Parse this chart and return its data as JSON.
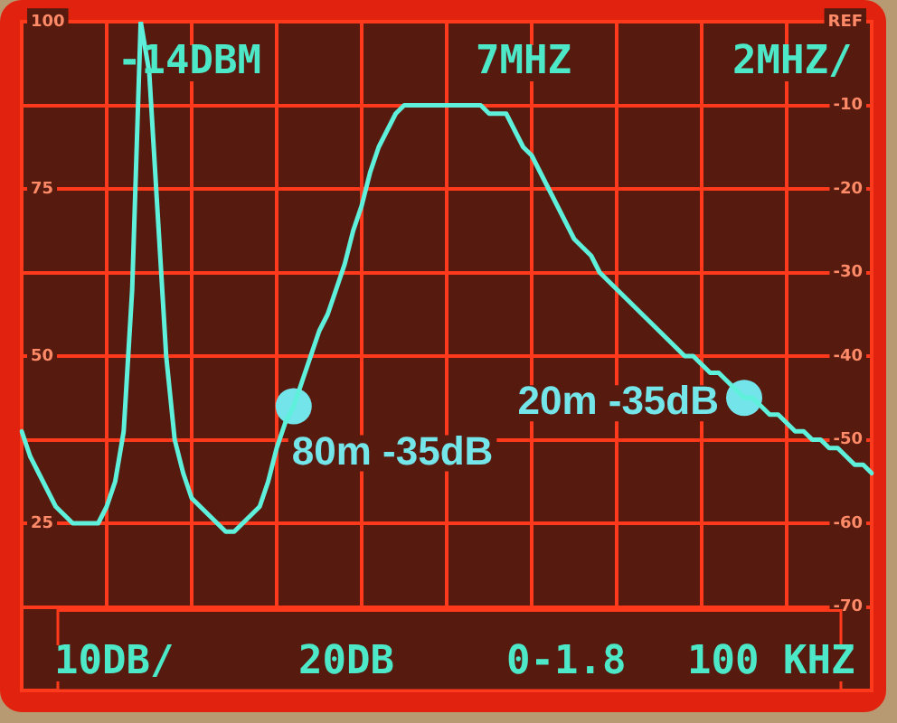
{
  "chart_data": {
    "type": "line",
    "categories": [
      null,
      null,
      null,
      null,
      null,
      null,
      null,
      null,
      null,
      null,
      null,
      null,
      null,
      null,
      null,
      null,
      null,
      null,
      null,
      null,
      null,
      null,
      null,
      null,
      null,
      null,
      null,
      null,
      null,
      null,
      null,
      null,
      null,
      null,
      null,
      null,
      null,
      null,
      null,
      null,
      null,
      null,
      null,
      null,
      null,
      null,
      null,
      null,
      null,
      null,
      null,
      null,
      null,
      null,
      null,
      null,
      null,
      null,
      null,
      null,
      null,
      null,
      null,
      null,
      null,
      null,
      null,
      null,
      null,
      null,
      null,
      null,
      null,
      null,
      null,
      null,
      null,
      null,
      null,
      null,
      null,
      null,
      null,
      null,
      null,
      null,
      null,
      null,
      null,
      null,
      null,
      null,
      null,
      null,
      null,
      null,
      null,
      null,
      null,
      null,
      null
    ],
    "series": [
      {
        "color": "#5ff0dc",
        "values": [
          -49,
          -52,
          -54,
          -56,
          -58,
          -59,
          -60,
          -60,
          -60,
          -60,
          -58,
          -55,
          -49,
          -32,
          0,
          -6,
          -23,
          -40,
          -50,
          -54,
          -57,
          -58,
          -59,
          -60,
          -61,
          -61,
          -60,
          -59,
          -58,
          -55,
          -51,
          -48,
          -46,
          -43,
          -40,
          -37,
          -35,
          -32,
          -29,
          -25,
          -22,
          -18,
          -15,
          -13,
          -11,
          -10,
          -10,
          -10,
          -10,
          -10,
          -10,
          -10,
          -10,
          -10,
          -10,
          -11,
          -11,
          -11,
          -13,
          -15,
          -16,
          -18,
          -20,
          -22,
          -24,
          -26,
          -27,
          -28,
          -30,
          -31,
          -32,
          -33,
          -34,
          -35,
          -36,
          -37,
          -38,
          -39,
          -40,
          -40,
          -41,
          -42,
          -42,
          -43,
          -44,
          -45,
          -45,
          -46,
          -47,
          -47,
          -48,
          -49,
          -49,
          -50,
          -50,
          -51,
          -51,
          -52,
          -53,
          -53,
          -54
        ]
      },
      {
        "type": "scatter",
        "color": "#72e4ea",
        "marker": "circle",
        "values": [
          null,
          null,
          null,
          null,
          null,
          null,
          null,
          null,
          null,
          null,
          null,
          null,
          null,
          null,
          null,
          null,
          null,
          null,
          null,
          null,
          null,
          null,
          null,
          null,
          null,
          null,
          null,
          null,
          null,
          null,
          null,
          null,
          -46,
          null,
          null,
          null,
          null,
          null,
          null,
          null,
          null,
          null,
          null,
          null,
          null,
          null,
          null,
          null,
          null,
          null,
          null,
          null,
          null,
          null,
          null,
          null,
          null,
          null,
          null,
          null,
          null,
          null,
          null,
          null,
          null,
          null,
          null,
          null,
          null,
          null,
          null,
          null,
          null,
          null,
          null,
          null,
          null,
          null,
          null,
          null,
          null,
          null,
          null,
          null,
          null,
          -45,
          null,
          null,
          null,
          null,
          null,
          null,
          null,
          null,
          null,
          null,
          null,
          null,
          null,
          null,
          null
        ]
      }
    ],
    "ylim": [
      -80,
      0
    ],
    "yticks": [
      {
        "value": 0,
        "label": "REF"
      },
      -10,
      -20,
      -30,
      -40,
      -50,
      -60,
      -70
    ],
    "y2lim": [
      0,
      100
    ],
    "y2ticks": [
      25,
      50,
      75,
      100
    ],
    "grid": true,
    "tick_labels": "y",
    "annotations": [
      "80m -35dB",
      "20m -35dB",
      "-14DBM",
      "7MHZ",
      "2MHZ/",
      "10DB/",
      "20DB",
      "0-1.8",
      "100 KHZ"
    ]
  }
}
